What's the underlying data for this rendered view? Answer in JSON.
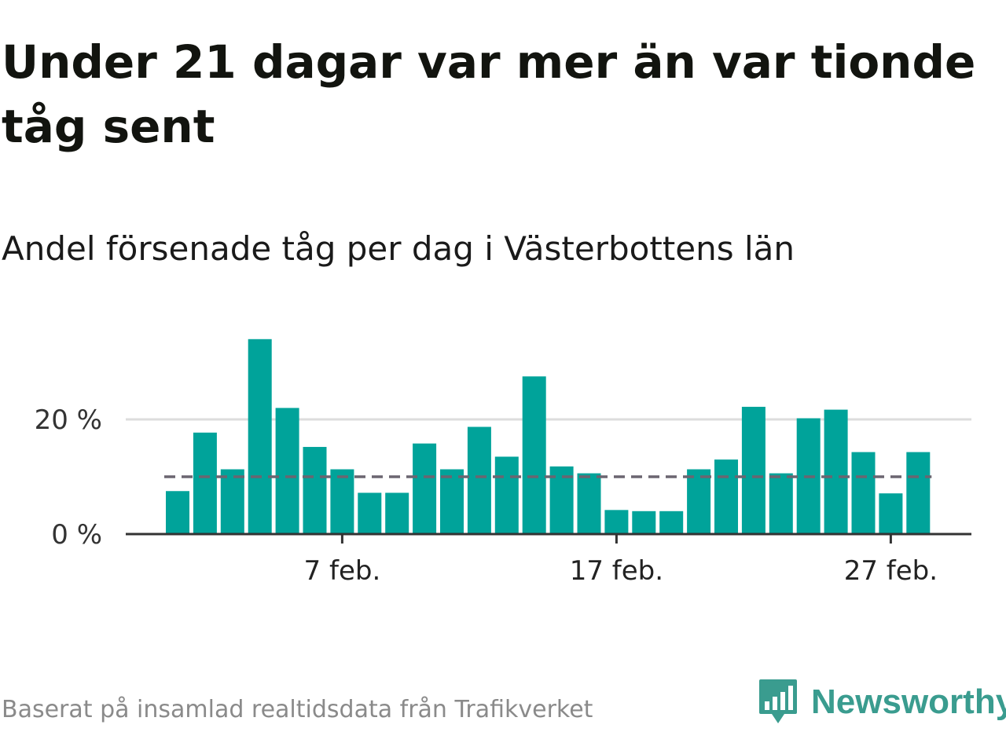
{
  "header": {
    "title": "Under 21 dagar var mer än var tionde tåg sent",
    "subtitle": "Andel försenade tåg per dag i Västerbottens län"
  },
  "footer": {
    "source": "Baserat på insamlad realtidsdata från Trafikverket",
    "brand": "Newsworthy"
  },
  "colors": {
    "bar": "#00a39a",
    "reference_line": "#6b6570",
    "grid": "#dddddd",
    "axis": "#333333",
    "brand": "#3a9c8f"
  },
  "chart_data": {
    "type": "bar",
    "x": [
      "1 feb.",
      "2 feb.",
      "3 feb.",
      "4 feb.",
      "5 feb.",
      "6 feb.",
      "7 feb.",
      "8 feb.",
      "9 feb.",
      "10 feb.",
      "11 feb.",
      "12 feb.",
      "13 feb.",
      "14 feb.",
      "15 feb.",
      "16 feb.",
      "17 feb.",
      "18 feb.",
      "19 feb.",
      "20 feb.",
      "21 feb.",
      "22 feb.",
      "23 feb.",
      "24 feb.",
      "25 feb.",
      "26 feb.",
      "27 feb.",
      "28 feb."
    ],
    "values": [
      7.5,
      17.7,
      11.3,
      34.0,
      22.0,
      15.2,
      11.3,
      7.2,
      7.2,
      15.8,
      11.3,
      18.7,
      13.5,
      27.5,
      11.8,
      10.6,
      4.2,
      4.0,
      4.0,
      11.3,
      13.0,
      22.2,
      10.6,
      20.2,
      21.7,
      14.3,
      7.1,
      14.3
    ],
    "reference_line": 10,
    "ylim": [
      0,
      37
    ],
    "y_ticks": [
      0,
      20
    ],
    "y_tick_labels": [
      "0 %",
      "20 %"
    ],
    "x_ticks": [
      "7 feb.",
      "17 feb.",
      "27 feb."
    ],
    "grid": true,
    "xlabel": "",
    "ylabel": ""
  }
}
